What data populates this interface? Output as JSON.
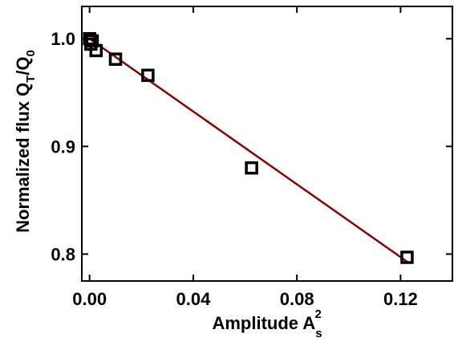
{
  "chart_data": {
    "type": "scatter",
    "xlabel": "Amplitude A",
    "xlabel_sub": "s",
    "xlabel_sup": "2",
    "ylabel": "Normalized flux Q",
    "ylabel_sub1": "T",
    "ylabel_mid": "/Q",
    "ylabel_sub2": "0",
    "xlim": [
      -0.003,
      0.14
    ],
    "ylim": [
      0.775,
      1.03
    ],
    "x_ticks": [
      0.0,
      0.04,
      0.08,
      0.12
    ],
    "x_tick_labels": [
      "0.00",
      "0.04",
      "0.08",
      "0.12"
    ],
    "y_ticks": [
      0.8,
      0.9,
      1.0
    ],
    "y_tick_labels": [
      "0.8",
      "0.9",
      "1.0"
    ],
    "grid": false,
    "series": [
      {
        "marker": "open-square",
        "color": "#000000",
        "x": [
          0.0,
          0.0005,
          0.001,
          0.0025,
          0.01,
          0.0225,
          0.0625,
          0.1225
        ],
        "y": [
          1.0,
          0.995,
          0.998,
          0.989,
          0.981,
          0.966,
          0.88,
          0.797
        ]
      },
      {
        "marker": "line",
        "color": "#8b0000",
        "x": [
          0.0,
          0.1225
        ],
        "y": [
          1.0,
          0.793
        ]
      }
    ]
  }
}
